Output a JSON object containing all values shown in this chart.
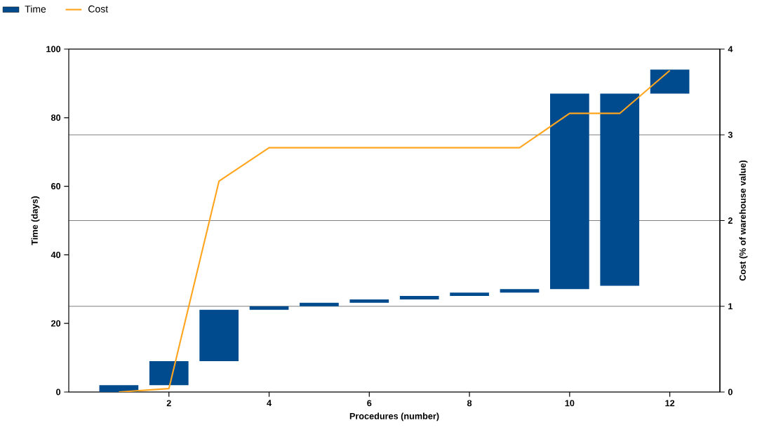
{
  "chart_data": {
    "type": "bar",
    "x": [
      1,
      2,
      3,
      4,
      5,
      6,
      7,
      8,
      9,
      10,
      11,
      12
    ],
    "xlabel": "Procedures (number)",
    "ylabel": "Time (days)",
    "y2label": "Cost (% of warehouse value)",
    "xlim": [
      0,
      13
    ],
    "xticks": [
      2,
      4,
      6,
      8,
      10,
      12
    ],
    "ylim": [
      0,
      100
    ],
    "yticks": [
      0,
      20,
      40,
      60,
      80,
      100
    ],
    "y2lim": [
      0,
      4
    ],
    "y2ticks": [
      0,
      1,
      2,
      3,
      4
    ],
    "grid": "y2",
    "legend": "top left",
    "series": [
      {
        "name": "Time",
        "color": "#004b8d",
        "base": [
          0,
          2,
          9,
          24,
          25,
          26,
          27,
          28,
          29,
          30,
          31,
          87
        ],
        "values": [
          2,
          7,
          15,
          1,
          1,
          1,
          1,
          1,
          1,
          57,
          56,
          7
        ]
      },
      {
        "name": "Cost",
        "type": "line",
        "axis": "y2",
        "color": "#ffa51f",
        "values": [
          0,
          0.04,
          2.46,
          2.85,
          2.85,
          2.85,
          2.85,
          2.85,
          2.85,
          3.25,
          3.25,
          3.75
        ]
      }
    ]
  }
}
